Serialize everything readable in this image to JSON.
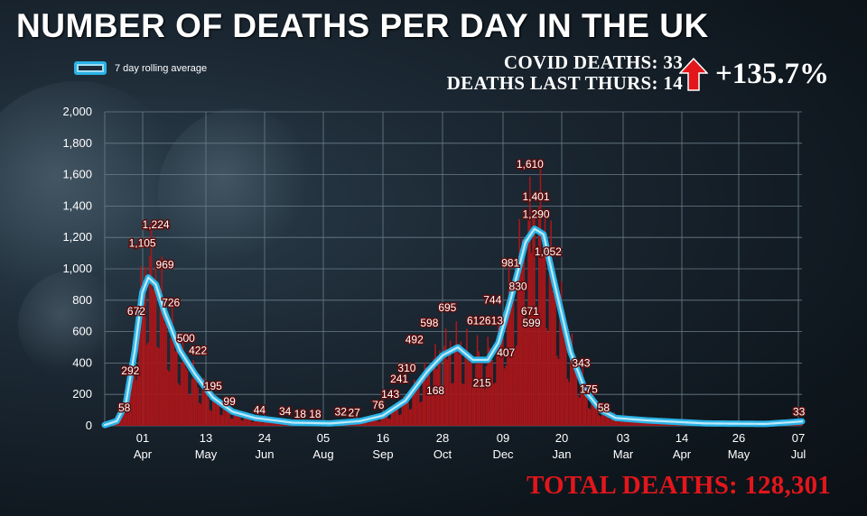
{
  "title": "NUMBER OF DEATHS PER DAY IN THE UK",
  "legend_label": "7 day rolling average",
  "stats": {
    "covid_deaths_label": "COVID DEATHS:",
    "covid_deaths_value": "33",
    "last_thurs_label": "DEATHS LAST THURS:",
    "last_thurs_value": "14",
    "change": "+135.7%"
  },
  "total_deaths_label": "TOTAL DEATHS:",
  "total_deaths_value": "128,301",
  "colors": {
    "bars": "#a8161a",
    "line": "#2ab3e6",
    "line_core": "#bfe9f8",
    "arrow": "#e3161b",
    "total": "#e3161b"
  },
  "chart_data": {
    "type": "bar",
    "ylim": [
      0,
      2000
    ],
    "y_ticks": [
      "0",
      "200",
      "400",
      "600",
      "800",
      "1,000",
      "1,200",
      "1,400",
      "1,600",
      "1,800",
      "2,000"
    ],
    "x_ticks": [
      {
        "day": "01",
        "month": "Apr"
      },
      {
        "day": "13",
        "month": "May"
      },
      {
        "day": "24",
        "month": "Jun"
      },
      {
        "day": "05",
        "month": "Aug"
      },
      {
        "day": "16",
        "month": "Sep"
      },
      {
        "day": "28",
        "month": "Oct"
      },
      {
        "day": "09",
        "month": "Dec"
      },
      {
        "day": "20",
        "month": "Jan"
      },
      {
        "day": "03",
        "month": "Mar"
      },
      {
        "day": "14",
        "month": "Apr"
      },
      {
        "day": "26",
        "month": "May"
      },
      {
        "day": "07",
        "month": "Jul"
      }
    ],
    "daily_deaths_profile": [
      {
        "day": 0,
        "value": 5
      },
      {
        "day": 8,
        "value": 40
      },
      {
        "day": 14,
        "value": 150
      },
      {
        "day": 20,
        "value": 450
      },
      {
        "day": 25,
        "value": 850
      },
      {
        "day": 30,
        "value": 1000
      },
      {
        "day": 36,
        "value": 900
      },
      {
        "day": 42,
        "value": 650
      },
      {
        "day": 50,
        "value": 470
      },
      {
        "day": 60,
        "value": 300
      },
      {
        "day": 72,
        "value": 160
      },
      {
        "day": 85,
        "value": 80
      },
      {
        "day": 100,
        "value": 40
      },
      {
        "day": 125,
        "value": 20
      },
      {
        "day": 150,
        "value": 18
      },
      {
        "day": 170,
        "value": 25
      },
      {
        "day": 185,
        "value": 55
      },
      {
        "day": 200,
        "value": 150
      },
      {
        "day": 215,
        "value": 330
      },
      {
        "day": 225,
        "value": 460
      },
      {
        "day": 235,
        "value": 510
      },
      {
        "day": 245,
        "value": 440
      },
      {
        "day": 255,
        "value": 430
      },
      {
        "day": 262,
        "value": 530
      },
      {
        "day": 270,
        "value": 800
      },
      {
        "day": 280,
        "value": 1130
      },
      {
        "day": 287,
        "value": 1300
      },
      {
        "day": 293,
        "value": 1180
      },
      {
        "day": 300,
        "value": 850
      },
      {
        "day": 310,
        "value": 470
      },
      {
        "day": 320,
        "value": 230
      },
      {
        "day": 330,
        "value": 110
      },
      {
        "day": 340,
        "value": 60
      },
      {
        "day": 360,
        "value": 30
      },
      {
        "day": 400,
        "value": 12
      },
      {
        "day": 440,
        "value": 10
      },
      {
        "day": 460,
        "value": 25
      },
      {
        "day": 464,
        "value": 33
      }
    ],
    "rolling_average": [
      {
        "day": 0,
        "value": 5
      },
      {
        "day": 8,
        "value": 30
      },
      {
        "day": 14,
        "value": 140
      },
      {
        "day": 20,
        "value": 480
      },
      {
        "day": 25,
        "value": 850
      },
      {
        "day": 29,
        "value": 945
      },
      {
        "day": 34,
        "value": 900
      },
      {
        "day": 40,
        "value": 720
      },
      {
        "day": 50,
        "value": 480
      },
      {
        "day": 60,
        "value": 330
      },
      {
        "day": 72,
        "value": 180
      },
      {
        "day": 85,
        "value": 90
      },
      {
        "day": 100,
        "value": 50
      },
      {
        "day": 125,
        "value": 20
      },
      {
        "day": 150,
        "value": 15
      },
      {
        "day": 170,
        "value": 30
      },
      {
        "day": 185,
        "value": 65
      },
      {
        "day": 200,
        "value": 160
      },
      {
        "day": 215,
        "value": 350
      },
      {
        "day": 225,
        "value": 450
      },
      {
        "day": 235,
        "value": 500
      },
      {
        "day": 245,
        "value": 420
      },
      {
        "day": 255,
        "value": 420
      },
      {
        "day": 262,
        "value": 530
      },
      {
        "day": 270,
        "value": 800
      },
      {
        "day": 280,
        "value": 1170
      },
      {
        "day": 286,
        "value": 1255
      },
      {
        "day": 292,
        "value": 1220
      },
      {
        "day": 300,
        "value": 880
      },
      {
        "day": 310,
        "value": 470
      },
      {
        "day": 320,
        "value": 220
      },
      {
        "day": 330,
        "value": 100
      },
      {
        "day": 340,
        "value": 50
      },
      {
        "day": 360,
        "value": 35
      },
      {
        "day": 400,
        "value": 15
      },
      {
        "day": 440,
        "value": 12
      },
      {
        "day": 460,
        "value": 25
      },
      {
        "day": 464,
        "value": 28
      }
    ],
    "data_labels": [
      {
        "text": "58",
        "day": 13,
        "value": 58
      },
      {
        "text": "292",
        "day": 17,
        "value": 292
      },
      {
        "text": "672",
        "day": 21,
        "value": 672
      },
      {
        "text": "1,105",
        "day": 25,
        "value": 1105
      },
      {
        "text": "1,224",
        "day": 34,
        "value": 1224
      },
      {
        "text": "969",
        "day": 40,
        "value": 969
      },
      {
        "text": "726",
        "day": 44,
        "value": 726
      },
      {
        "text": "500",
        "day": 54,
        "value": 500
      },
      {
        "text": "422",
        "day": 62,
        "value": 422
      },
      {
        "text": "195",
        "day": 72,
        "value": 195
      },
      {
        "text": "99",
        "day": 83,
        "value": 99
      },
      {
        "text": "44",
        "day": 103,
        "value": 44
      },
      {
        "text": "34",
        "day": 120,
        "value": 34
      },
      {
        "text": "18",
        "day": 130,
        "value": 18
      },
      {
        "text": "18",
        "day": 140,
        "value": 18
      },
      {
        "text": "32",
        "day": 157,
        "value": 32
      },
      {
        "text": "27",
        "day": 166,
        "value": 27
      },
      {
        "text": "76",
        "day": 182,
        "value": 76
      },
      {
        "text": "143",
        "day": 190,
        "value": 143
      },
      {
        "text": "241",
        "day": 196,
        "value": 241
      },
      {
        "text": "310",
        "day": 201,
        "value": 310
      },
      {
        "text": "492",
        "day": 206,
        "value": 492
      },
      {
        "text": "598",
        "day": 216,
        "value": 598
      },
      {
        "text": "168",
        "day": 220,
        "value": 168
      },
      {
        "text": "695",
        "day": 228,
        "value": 695
      },
      {
        "text": "612",
        "day": 247,
        "value": 612
      },
      {
        "text": "215",
        "day": 251,
        "value": 215
      },
      {
        "text": "744",
        "day": 258,
        "value": 744
      },
      {
        "text": "613",
        "day": 259,
        "value": 613
      },
      {
        "text": "407",
        "day": 267,
        "value": 407
      },
      {
        "text": "981",
        "day": 270,
        "value": 981
      },
      {
        "text": "830",
        "day": 275,
        "value": 830
      },
      {
        "text": "1,610",
        "day": 283,
        "value": 1610
      },
      {
        "text": "1,401",
        "day": 287,
        "value": 1401
      },
      {
        "text": "1,290",
        "day": 287,
        "value": 1290
      },
      {
        "text": "671",
        "day": 283,
        "value": 671
      },
      {
        "text": "599",
        "day": 284,
        "value": 599
      },
      {
        "text": "1,052",
        "day": 295,
        "value": 1052
      },
      {
        "text": "343",
        "day": 317,
        "value": 343
      },
      {
        "text": "175",
        "day": 322,
        "value": 175
      },
      {
        "text": "58",
        "day": 332,
        "value": 58
      },
      {
        "text": "33",
        "day": 462,
        "value": 33
      }
    ]
  }
}
